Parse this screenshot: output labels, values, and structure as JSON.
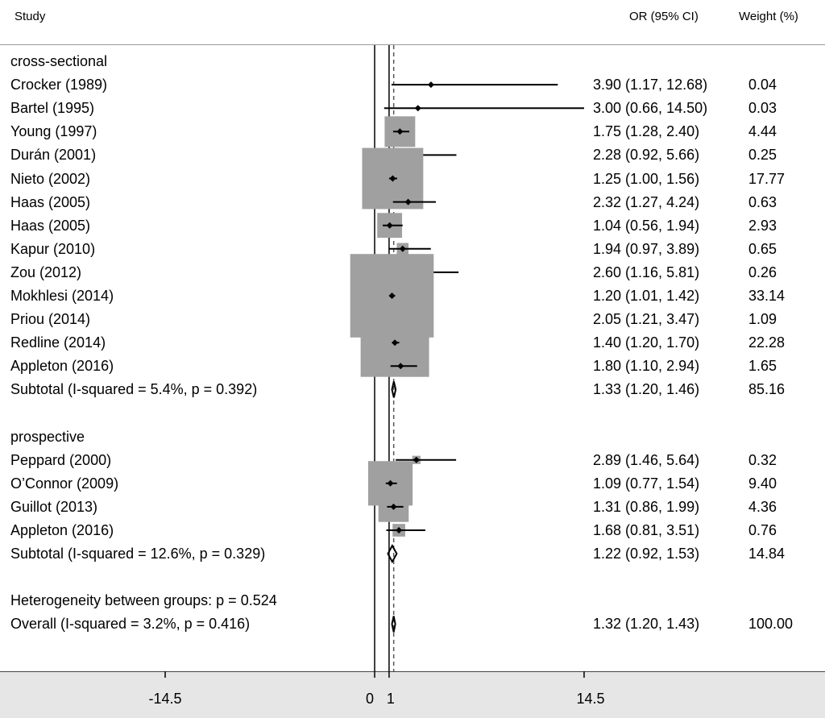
{
  "header": {
    "study": "Study",
    "or_ci": "OR (95% CI)",
    "weight": "Weight (%)"
  },
  "colors": {
    "box": "#a0a0a0",
    "line": "#000000",
    "dash": "#555555",
    "footer": "#e6e6e6"
  },
  "chart_data": {
    "type": "forest",
    "xlabel": "",
    "x_ticks": [
      "-14.5",
      "0",
      "1",
      "14.5"
    ],
    "null_line": 0,
    "overall_effect": 1.32,
    "groups": [
      {
        "name": "cross-sectional",
        "studies": [
          {
            "label": "Crocker (1989)",
            "or": 3.9,
            "lo": 1.17,
            "hi": 12.68,
            "ci_text": "3.90 (1.17, 12.68)",
            "weight": "0.04"
          },
          {
            "label": "Bartel (1995)",
            "or": 3.0,
            "lo": 0.66,
            "hi": 14.5,
            "ci_text": "3.00 (0.66, 14.50)",
            "weight": "0.03"
          },
          {
            "label": "Young (1997)",
            "or": 1.75,
            "lo": 1.28,
            "hi": 2.4,
            "ci_text": "1.75 (1.28, 2.40)",
            "weight": "4.44"
          },
          {
            "label": "Durán (2001)",
            "or": 2.28,
            "lo": 0.92,
            "hi": 5.66,
            "ci_text": "2.28 (0.92, 5.66)",
            "weight": "0.25"
          },
          {
            "label": "Nieto (2002)",
            "or": 1.25,
            "lo": 1.0,
            "hi": 1.56,
            "ci_text": "1.25 (1.00, 1.56)",
            "weight": "17.77"
          },
          {
            "label": "Haas (2005)",
            "or": 2.32,
            "lo": 1.27,
            "hi": 4.24,
            "ci_text": "2.32 (1.27, 4.24)",
            "weight": "0.63"
          },
          {
            "label": "Haas (2005)",
            "or": 1.04,
            "lo": 0.56,
            "hi": 1.94,
            "ci_text": "1.04 (0.56, 1.94)",
            "weight": "2.93"
          },
          {
            "label": "Kapur (2010)",
            "or": 1.94,
            "lo": 0.97,
            "hi": 3.89,
            "ci_text": "1.94 (0.97, 3.89)",
            "weight": "0.65"
          },
          {
            "label": "Zou (2012)",
            "or": 2.6,
            "lo": 1.16,
            "hi": 5.81,
            "ci_text": "2.60 (1.16, 5.81)",
            "weight": "0.26"
          },
          {
            "label": "Mokhlesi (2014)",
            "or": 1.2,
            "lo": 1.01,
            "hi": 1.42,
            "ci_text": "1.20 (1.01, 1.42)",
            "weight": "33.14"
          },
          {
            "label": "Priou (2014)",
            "or": 2.05,
            "lo": 1.21,
            "hi": 3.47,
            "ci_text": "2.05 (1.21, 3.47)",
            "weight": "1.09"
          },
          {
            "label": "Redline (2014)",
            "or": 1.4,
            "lo": 1.2,
            "hi": 1.7,
            "ci_text": "1.40 (1.20, 1.70)",
            "weight": "22.28"
          },
          {
            "label": "Appleton (2016)",
            "or": 1.8,
            "lo": 1.1,
            "hi": 2.94,
            "ci_text": "1.80 (1.10, 2.94)",
            "weight": "1.65"
          }
        ],
        "subtotal": {
          "label": "Subtotal  (I-squared = 5.4%, p = 0.392)",
          "or": 1.33,
          "lo": 1.2,
          "hi": 1.46,
          "ci_text": "1.33 (1.20, 1.46)",
          "weight": "85.16"
        }
      },
      {
        "name": "prospective",
        "studies": [
          {
            "label": "Peppard (2000)",
            "or": 2.89,
            "lo": 1.46,
            "hi": 5.64,
            "ci_text": "2.89 (1.46, 5.64)",
            "weight": "0.32"
          },
          {
            "label": "O’Connor (2009)",
            "or": 1.09,
            "lo": 0.77,
            "hi": 1.54,
            "ci_text": "1.09 (0.77, 1.54)",
            "weight": "9.40"
          },
          {
            "label": "Guillot (2013)",
            "or": 1.31,
            "lo": 0.86,
            "hi": 1.99,
            "ci_text": "1.31 (0.86, 1.99)",
            "weight": "4.36"
          },
          {
            "label": "Appleton (2016)",
            "or": 1.68,
            "lo": 0.81,
            "hi": 3.51,
            "ci_text": "1.68 (0.81, 3.51)",
            "weight": "0.76"
          }
        ],
        "subtotal": {
          "label": "Subtotal  (I-squared = 12.6%, p = 0.329)",
          "or": 1.22,
          "lo": 0.92,
          "hi": 1.53,
          "ci_text": "1.22 (0.92, 1.53)",
          "weight": "14.84"
        }
      }
    ],
    "heterogeneity": "Heterogeneity between groups: p = 0.524",
    "overall": {
      "label": "Overall  (I-squared = 3.2%, p = 0.416)",
      "or": 1.32,
      "lo": 1.2,
      "hi": 1.43,
      "ci_text": "1.32 (1.20, 1.43)",
      "weight": "100.00"
    }
  }
}
